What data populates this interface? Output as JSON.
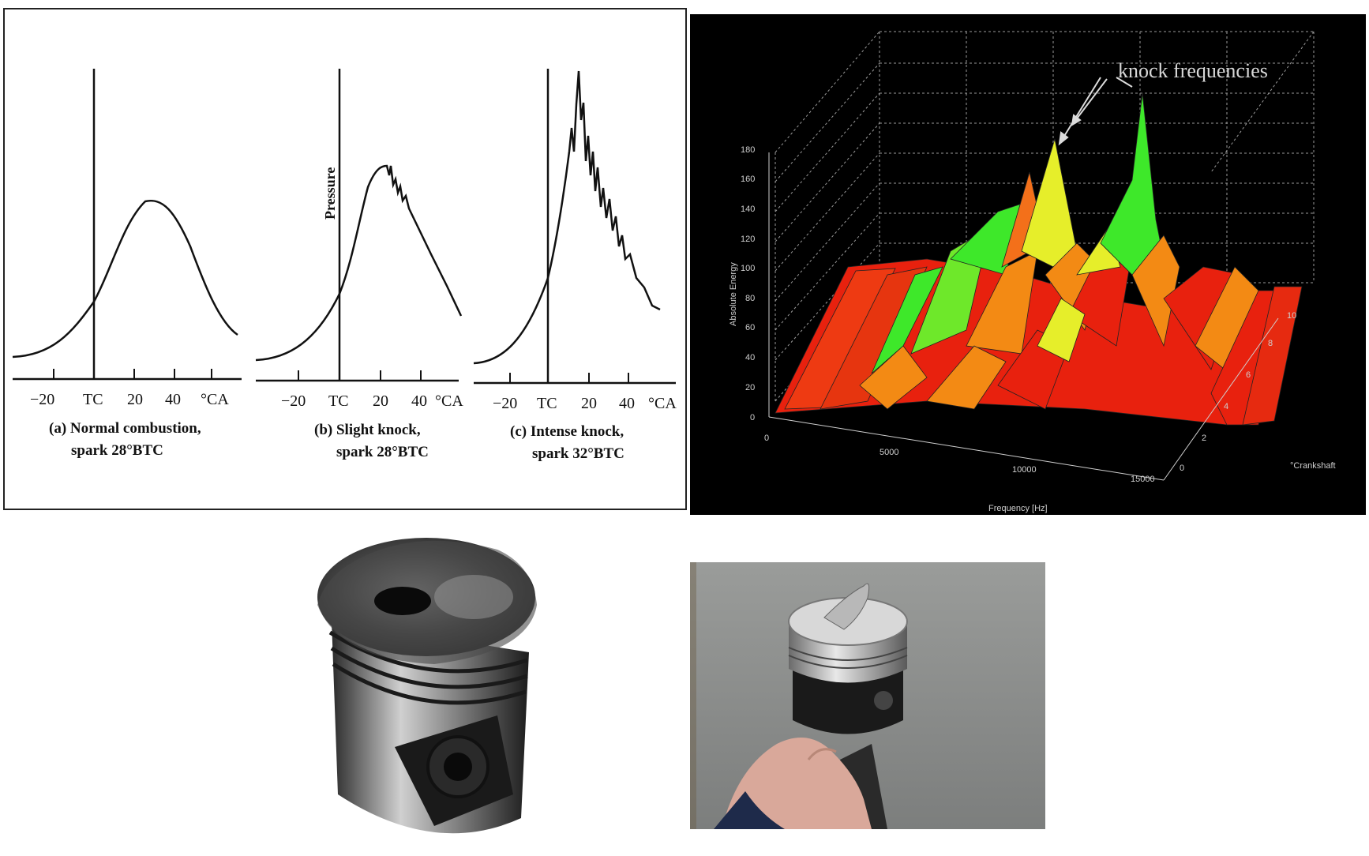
{
  "pressure_figure": {
    "ylabel": "Pressure",
    "panels": [
      {
        "caption_line1": "(a) Normal combustion,",
        "caption_line2": "spark 28°BTC",
        "ticks": [
          "−20",
          "TC",
          "20",
          "40",
          "°CA"
        ]
      },
      {
        "caption_line1": "(b) Slight knock,",
        "caption_line2": "spark 28°BTC",
        "ticks": [
          "−20",
          "TC",
          "20",
          "40",
          "°CA"
        ]
      },
      {
        "caption_line1": "(c) Intense knock,",
        "caption_line2": "spark 32°BTC",
        "ticks": [
          "−20",
          "TC",
          "20",
          "40",
          "°CA"
        ]
      }
    ]
  },
  "spectrum_figure": {
    "annotation": "knock frequencies",
    "zlabel": "Absolute Energy",
    "xlabel": "Frequency [Hz]",
    "ylabel": "°Crankshaft",
    "z_ticks": [
      "0",
      "20",
      "40",
      "60",
      "80",
      "100",
      "120",
      "140",
      "160",
      "180"
    ],
    "x_ticks": [
      "0",
      "5000",
      "10000",
      "15000"
    ],
    "y_ticks": [
      "0",
      "2",
      "4",
      "6",
      "8",
      "10"
    ]
  },
  "colors": {
    "spectrum_background": "#000000",
    "spectrum_red": "#e8210e",
    "spectrum_orange": "#f38a14",
    "spectrum_yellow": "#e6ee2a",
    "spectrum_green": "#3ee82a"
  }
}
